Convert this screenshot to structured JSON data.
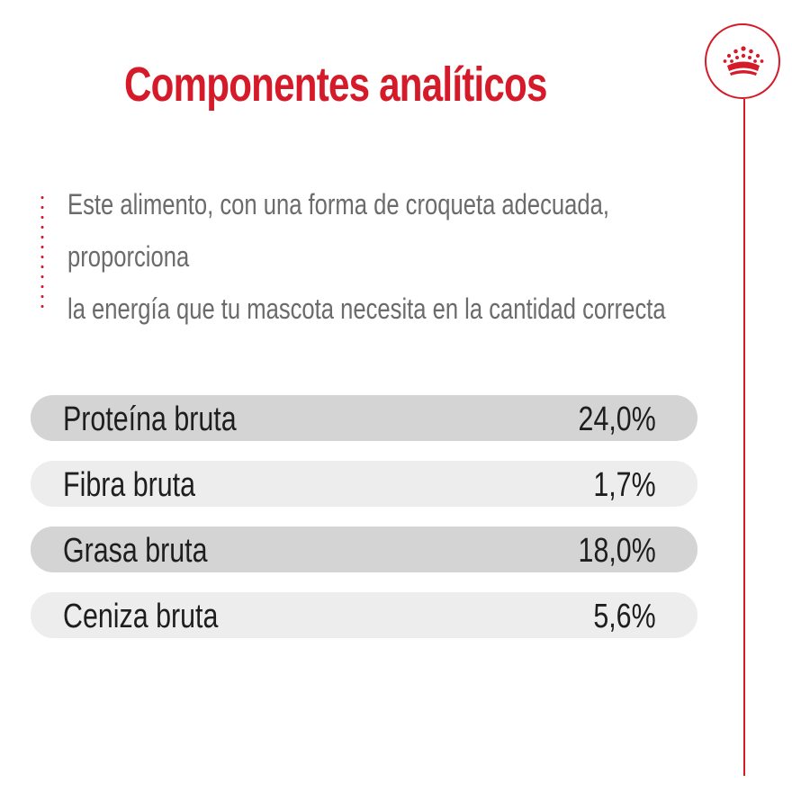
{
  "title": "Componentes analíticos",
  "description": {
    "line1": "Este alimento, con una forma de croqueta adecuada,",
    "line2": "proporciona",
    "line3": "la energía que tu mascota necesita en la cantidad correcta"
  },
  "components": [
    {
      "label": "Proteína bruta",
      "value": "24,0%"
    },
    {
      "label": "Fibra bruta",
      "value": "1,7%"
    },
    {
      "label": "Grasa bruta",
      "value": "18,0%"
    },
    {
      "label": "Ceniza bruta",
      "value": "5,6%"
    }
  ],
  "brand": {
    "icon": "crown-icon",
    "accent_color": "#d51b2a"
  }
}
